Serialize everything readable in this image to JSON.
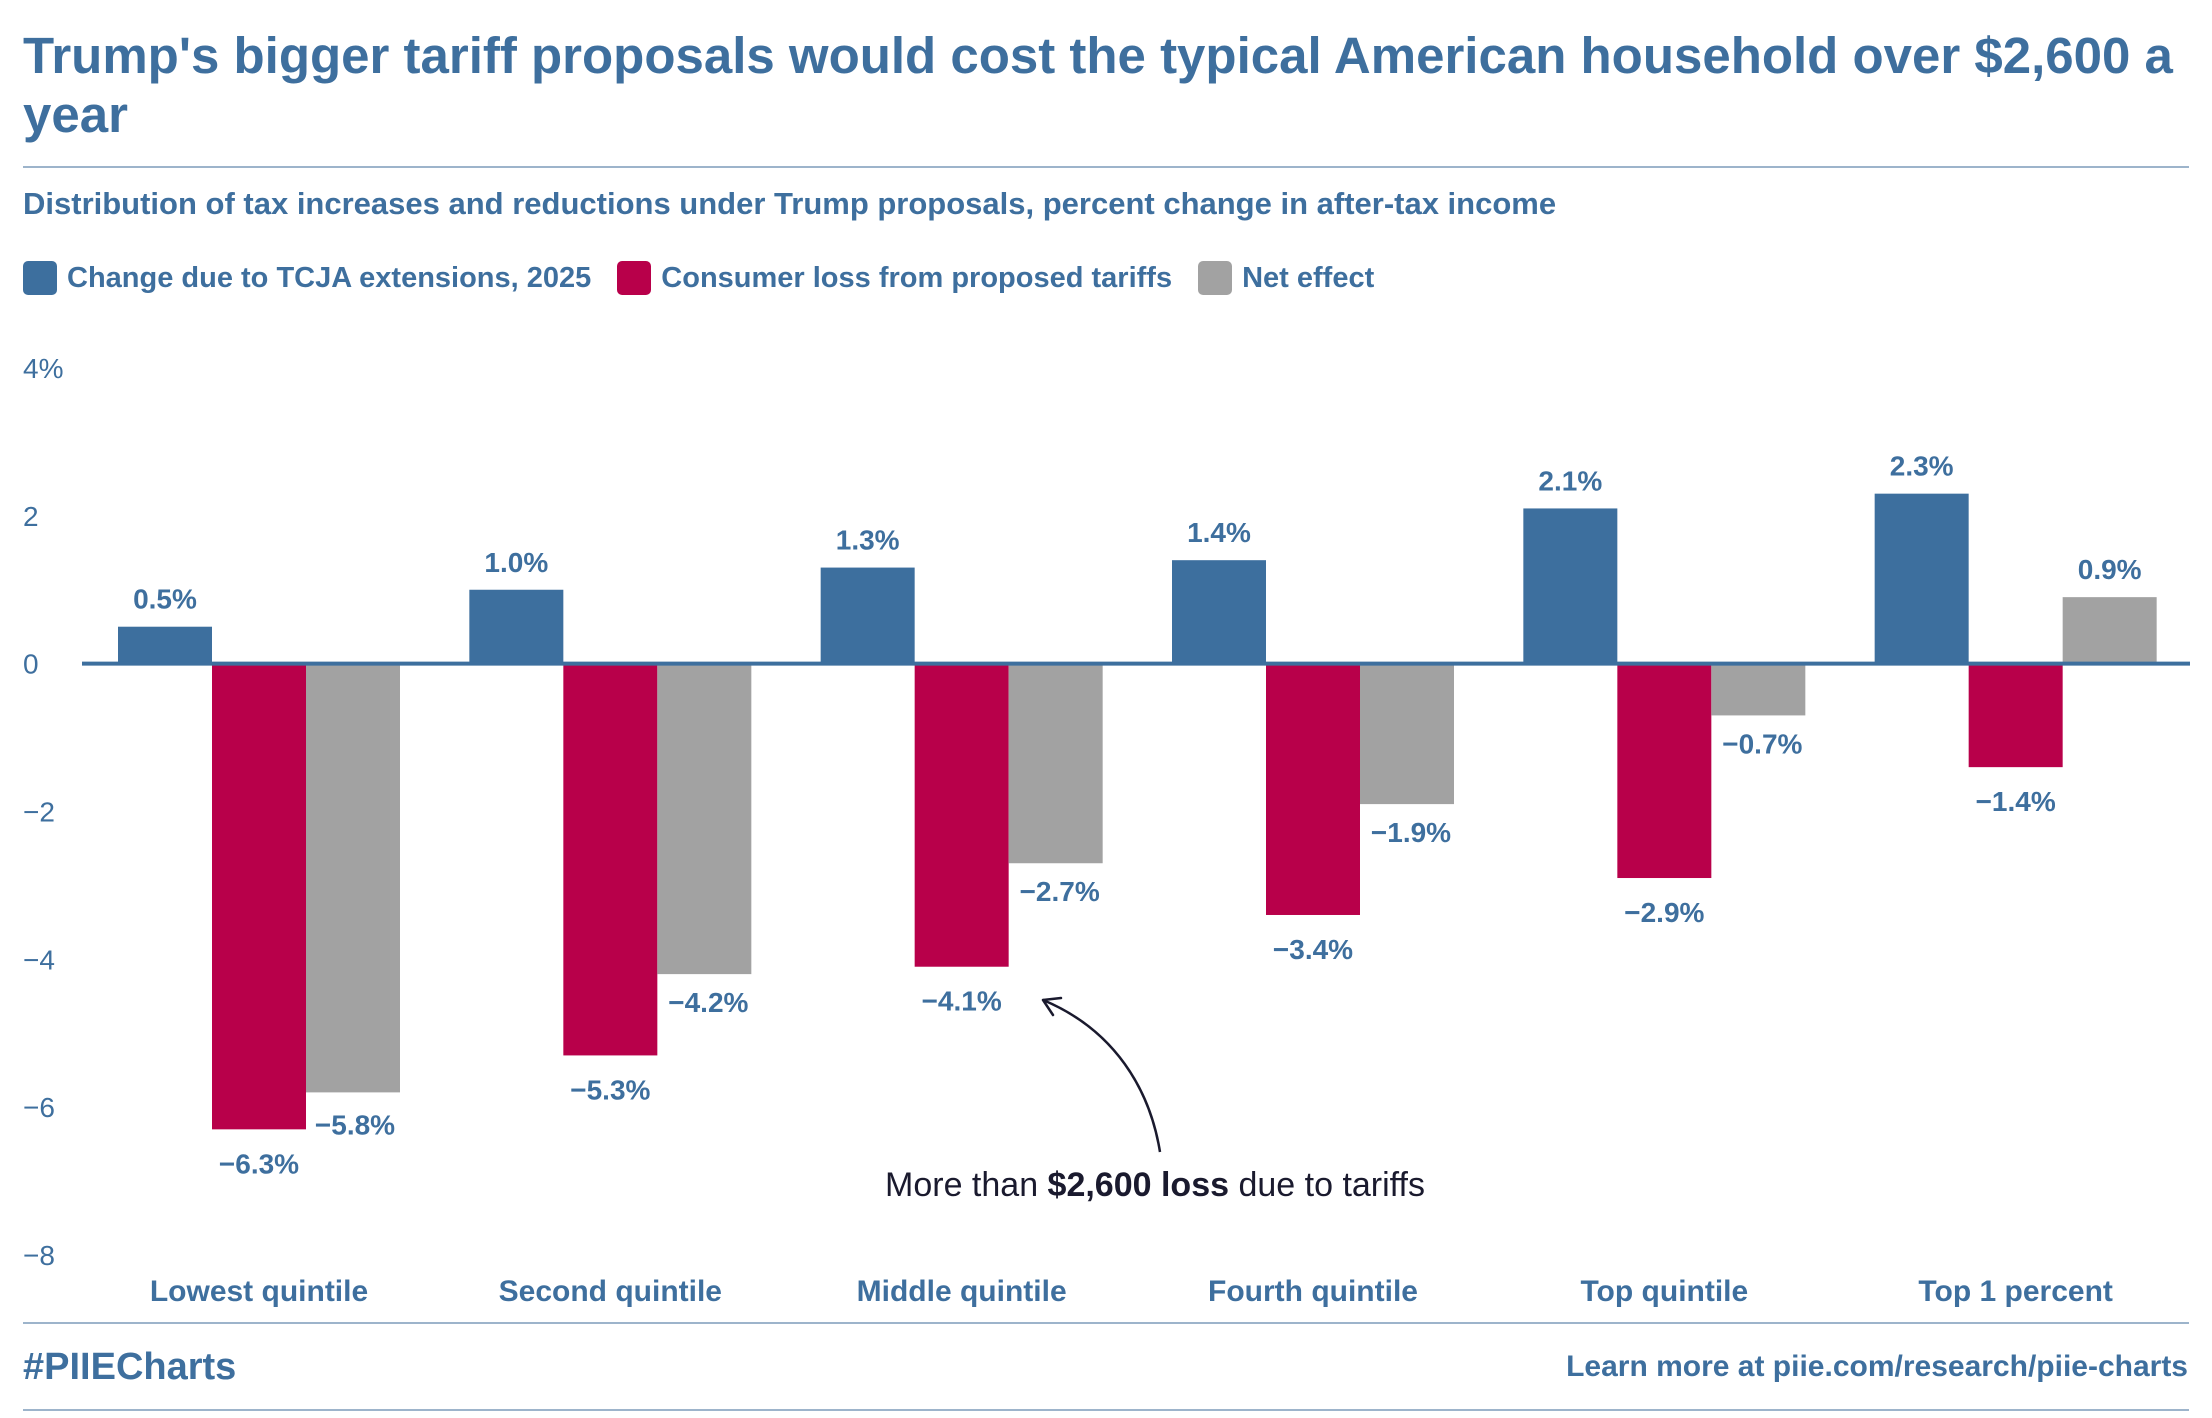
{
  "header": {
    "title": "Trump's bigger tariff proposals would cost the typical American household over $2,600 a year",
    "subtitle": "Distribution of tax increases and reductions under Trump proposals, percent change in after-tax income"
  },
  "legend": [
    {
      "label": "Change due to TCJA extensions, 2025",
      "color": "#3d6f9e"
    },
    {
      "label": "Consumer loss from proposed tariffs",
      "color": "#b8004a"
    },
    {
      "label": "Net effect",
      "color": "#a2a2a2"
    }
  ],
  "chart_data": {
    "type": "bar",
    "title": "Distribution of tax increases and reductions under Trump proposals, percent change in after-tax income",
    "xlabel": "",
    "ylabel": "",
    "ylim": [
      -8,
      4
    ],
    "yticks": [
      4,
      2,
      0,
      -2,
      -4,
      -6,
      -8
    ],
    "ytick_labels": [
      "4%",
      "2",
      "0",
      "−2",
      "−4",
      "−6",
      "−8"
    ],
    "categories": [
      "Lowest quintile",
      "Second quintile",
      "Middle quintile",
      "Fourth quintile",
      "Top quintile",
      "Top 1 percent"
    ],
    "series": [
      {
        "name": "Change due to TCJA extensions, 2025",
        "color": "#3d6f9e",
        "values": [
          0.5,
          1.0,
          1.3,
          1.4,
          2.1,
          2.3
        ],
        "labels": [
          "0.5%",
          "1.0%",
          "1.3%",
          "1.4%",
          "2.1%",
          "2.3%"
        ]
      },
      {
        "name": "Consumer loss from proposed tariffs",
        "color": "#b8004a",
        "values": [
          -6.3,
          -5.3,
          -4.1,
          -3.4,
          -2.9,
          -1.4
        ],
        "labels": [
          "−6.3%",
          "−5.3%",
          "−4.1%",
          "−3.4%",
          "−2.9%",
          "−1.4%"
        ]
      },
      {
        "name": "Net effect",
        "color": "#a2a2a2",
        "values": [
          -5.8,
          -4.2,
          -2.7,
          -1.9,
          -0.7,
          0.9
        ],
        "labels": [
          "−5.8%",
          "−4.2%",
          "−2.7%",
          "−1.9%",
          "−0.7%",
          "0.9%"
        ]
      }
    ],
    "annotation": {
      "prefix": "More than ",
      "bold": "$2,600 loss",
      "suffix": " due to tariffs",
      "target_category": "Middle quintile",
      "target_series": "Consumer loss from proposed tariffs"
    },
    "legend_position": "top-left"
  },
  "footer": {
    "hashtag": "#PIIECharts",
    "link": "Learn more at piie.com/research/piie-charts"
  }
}
